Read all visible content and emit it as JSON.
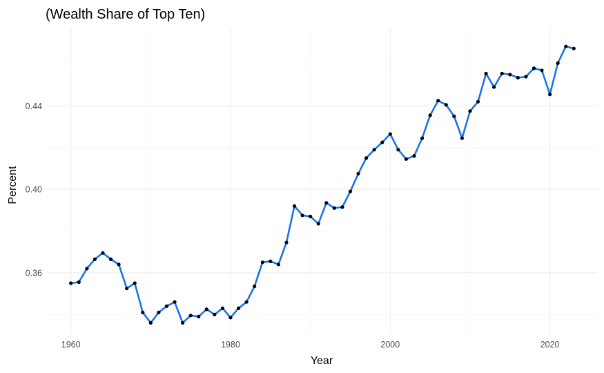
{
  "chart_data": {
    "type": "line",
    "title": "(Wealth Share of Top Ten)",
    "xlabel": "Year",
    "ylabel": "Percent",
    "xlim": [
      1957,
      2026
    ],
    "ylim": [
      0.3305,
      0.4775
    ],
    "xticks": [
      1960,
      1980,
      2000,
      2020
    ],
    "xtick_labels": [
      "1960",
      "1980",
      "2000",
      "2020"
    ],
    "yticks": [
      0.36,
      0.4,
      0.44
    ],
    "ytick_labels": [
      "0.36",
      "0.40",
      "0.44"
    ],
    "grid": true,
    "line_color": "#1a73e8",
    "point_color": "#000000",
    "series": [
      {
        "x": [
          1960,
          1961,
          1962,
          1963,
          1964,
          1965,
          1966,
          1967,
          1968,
          1969,
          1970,
          1971,
          1972,
          1973,
          1974,
          1975,
          1976,
          1977,
          1978,
          1979,
          1980,
          1981,
          1982,
          1983,
          1984,
          1985,
          1986,
          1987,
          1988,
          1989,
          1990,
          1991,
          1992,
          1993,
          1994,
          1995,
          1996,
          1997,
          1998,
          1999,
          2000,
          2001,
          2002,
          2003,
          2004,
          2005,
          2006,
          2007,
          2008,
          2009,
          2010,
          2011,
          2012,
          2013,
          2014,
          2015,
          2016,
          2017,
          2018,
          2019,
          2020,
          2021,
          2022,
          2023
        ],
        "values": [
          0.355,
          0.3555,
          0.362,
          0.3665,
          0.3695,
          0.3665,
          0.364,
          0.3525,
          0.355,
          0.341,
          0.336,
          0.341,
          0.344,
          0.346,
          0.336,
          0.3395,
          0.339,
          0.3425,
          0.34,
          0.343,
          0.3385,
          0.343,
          0.346,
          0.3535,
          0.365,
          0.3655,
          0.364,
          0.3745,
          0.392,
          0.3875,
          0.387,
          0.3835,
          0.3935,
          0.391,
          0.3915,
          0.399,
          0.4075,
          0.415,
          0.419,
          0.4225,
          0.4265,
          0.419,
          0.4145,
          0.416,
          0.4245,
          0.4355,
          0.4425,
          0.4405,
          0.435,
          0.4245,
          0.4375,
          0.442,
          0.4555,
          0.449,
          0.4555,
          0.455,
          0.4535,
          0.454,
          0.458,
          0.457,
          0.4455,
          0.4605,
          0.4685,
          0.4675
        ]
      }
    ]
  }
}
